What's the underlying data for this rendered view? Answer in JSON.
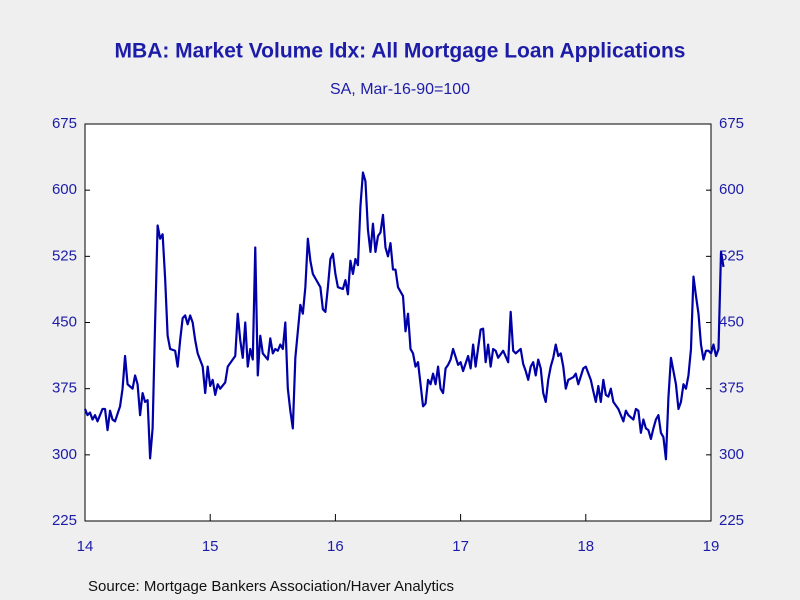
{
  "chart_data": {
    "type": "line",
    "title": "MBA: Market Volume Idx: All Mortgage Loan Applications",
    "subtitle": "SA, Mar-16-90=100",
    "source": "Source:  Mortgage Bankers Association/Haver Analytics",
    "xlim": [
      2014,
      2019.1
    ],
    "xticks": [
      {
        "value": 2014,
        "label": "14"
      },
      {
        "value": 2015,
        "label": "15"
      },
      {
        "value": 2016,
        "label": "16"
      },
      {
        "value": 2017,
        "label": "17"
      },
      {
        "value": 2018,
        "label": "18"
      },
      {
        "value": 2019,
        "label": "19"
      }
    ],
    "ylim": [
      225,
      675
    ],
    "yticks": [
      225,
      300,
      375,
      450,
      525,
      600,
      675
    ],
    "grid": false,
    "series": [
      {
        "name": "Market Volume Index",
        "color": "#0000a8",
        "x": [
          2014.0,
          2014.02,
          2014.04,
          2014.06,
          2014.08,
          2014.1,
          2014.14,
          2014.16,
          2014.18,
          2014.2,
          2014.22,
          2014.24,
          2014.28,
          2014.3,
          2014.32,
          2014.34,
          2014.38,
          2014.4,
          2014.42,
          2014.44,
          2014.46,
          2014.48,
          2014.5,
          2014.52,
          2014.54,
          2014.56,
          2014.58,
          2014.6,
          2014.62,
          2014.64,
          2014.66,
          2014.68,
          2014.72,
          2014.74,
          2014.76,
          2014.78,
          2014.8,
          2014.82,
          2014.84,
          2014.86,
          2014.88,
          2014.9,
          2014.94,
          2014.96,
          2014.98,
          2015.0,
          2015.02,
          2015.04,
          2015.06,
          2015.08,
          2015.12,
          2015.14,
          2015.18,
          2015.2,
          2015.22,
          2015.24,
          2015.26,
          2015.28,
          2015.3,
          2015.32,
          2015.34,
          2015.36,
          2015.38,
          2015.4,
          2015.42,
          2015.46,
          2015.48,
          2015.5,
          2015.52,
          2015.54,
          2015.56,
          2015.58,
          2015.6,
          2015.62,
          2015.64,
          2015.66,
          2015.68,
          2015.7,
          2015.72,
          2015.74,
          2015.76,
          2015.78,
          2015.8,
          2015.82,
          2015.84,
          2015.88,
          2015.9,
          2015.92,
          2015.94,
          2015.96,
          2015.98,
          2016.0,
          2016.02,
          2016.06,
          2016.08,
          2016.1,
          2016.12,
          2016.14,
          2016.16,
          2016.18,
          2016.2,
          2016.22,
          2016.24,
          2016.26,
          2016.28,
          2016.3,
          2016.32,
          2016.34,
          2016.36,
          2016.38,
          2016.4,
          2016.42,
          2016.44,
          2016.46,
          2016.48,
          2016.5,
          2016.54,
          2016.56,
          2016.58,
          2016.6,
          2016.62,
          2016.64,
          2016.66,
          2016.68,
          2016.7,
          2016.72,
          2016.74,
          2016.76,
          2016.78,
          2016.8,
          2016.82,
          2016.84,
          2016.86,
          2016.88,
          2016.9,
          2016.92,
          2016.94,
          2016.98,
          2017.0,
          2017.02,
          2017.06,
          2017.08,
          2017.1,
          2017.12,
          2017.16,
          2017.18,
          2017.2,
          2017.22,
          2017.24,
          2017.26,
          2017.28,
          2017.3,
          2017.34,
          2017.38,
          2017.4,
          2017.42,
          2017.44,
          2017.48,
          2017.5,
          2017.52,
          2017.54,
          2017.56,
          2017.58,
          2017.6,
          2017.62,
          2017.64,
          2017.66,
          2017.68,
          2017.7,
          2017.72,
          2017.74,
          2017.76,
          2017.78,
          2017.8,
          2017.82,
          2017.84,
          2017.86,
          2017.9,
          2017.92,
          2017.94,
          2017.98,
          2018.0,
          2018.04,
          2018.06,
          2018.08,
          2018.1,
          2018.12,
          2018.14,
          2018.16,
          2018.18,
          2018.2,
          2018.22,
          2018.26,
          2018.28,
          2018.3,
          2018.32,
          2018.34,
          2018.38,
          2018.4,
          2018.42,
          2018.44,
          2018.46,
          2018.48,
          2018.5,
          2018.52,
          2018.54,
          2018.56,
          2018.58,
          2018.6,
          2018.62,
          2018.64,
          2018.66,
          2018.68,
          2018.7,
          2018.72,
          2018.74,
          2018.76,
          2018.78,
          2018.8,
          2018.82,
          2018.84,
          2018.86,
          2018.88,
          2018.9,
          2018.92,
          2018.94,
          2018.96,
          2018.98,
          2019.0,
          2019.02,
          2019.04,
          2019.06,
          2019.08,
          2019.1
        ],
        "values": [
          352,
          345,
          348,
          340,
          345,
          338,
          352,
          352,
          328,
          350,
          340,
          338,
          355,
          375,
          412,
          380,
          375,
          390,
          380,
          345,
          370,
          360,
          362,
          296,
          330,
          450,
          560,
          545,
          550,
          500,
          435,
          420,
          418,
          400,
          430,
          455,
          458,
          448,
          458,
          450,
          430,
          415,
          400,
          370,
          400,
          378,
          385,
          368,
          380,
          375,
          382,
          400,
          408,
          412,
          460,
          430,
          410,
          450,
          400,
          420,
          408,
          535,
          390,
          435,
          415,
          408,
          432,
          415,
          420,
          418,
          425,
          420,
          450,
          375,
          350,
          330,
          410,
          440,
          470,
          460,
          490,
          545,
          520,
          505,
          500,
          490,
          465,
          462,
          490,
          522,
          528,
          505,
          490,
          488,
          498,
          482,
          520,
          505,
          522,
          515,
          582,
          620,
          610,
          555,
          530,
          562,
          530,
          548,
          552,
          572,
          535,
          525,
          540,
          510,
          510,
          490,
          480,
          440,
          460,
          420,
          415,
          400,
          405,
          380,
          355,
          358,
          385,
          380,
          392,
          380,
          400,
          375,
          370,
          398,
          402,
          408,
          420,
          402,
          405,
          395,
          412,
          398,
          425,
          400,
          442,
          443,
          405,
          425,
          400,
          420,
          418,
          410,
          418,
          405,
          462,
          418,
          415,
          420,
          403,
          395,
          385,
          400,
          405,
          390,
          408,
          398,
          370,
          360,
          385,
          400,
          410,
          425,
          412,
          415,
          400,
          375,
          385,
          388,
          392,
          380,
          398,
          400,
          385,
          372,
          360,
          378,
          360,
          385,
          368,
          366,
          375,
          360,
          352,
          345,
          338,
          350,
          345,
          340,
          352,
          350,
          325,
          340,
          330,
          328,
          318,
          330,
          340,
          345,
          325,
          320,
          295,
          365,
          410,
          395,
          380,
          352,
          360,
          380,
          375,
          390,
          420,
          502,
          480,
          460,
          425,
          408,
          418,
          418,
          415,
          425,
          412,
          420,
          530,
          513
        ]
      }
    ]
  }
}
